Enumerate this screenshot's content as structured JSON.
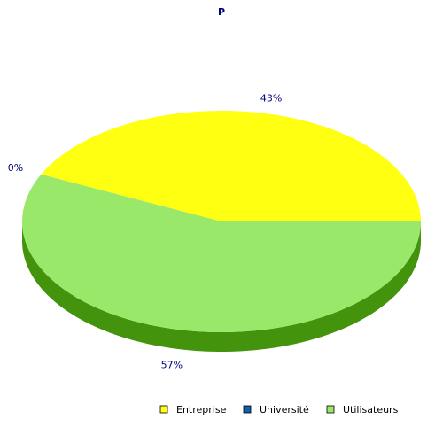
{
  "chart_data": {
    "type": "pie",
    "title": "P",
    "series": [
      {
        "name": "Entreprise",
        "value": 43,
        "label": "43%",
        "color": "#ffff11",
        "side_color": "#cccc00"
      },
      {
        "name": "Université",
        "value": 0,
        "label": "0%",
        "color": "#0f5fa9",
        "side_color": "#0a4478"
      },
      {
        "name": "Utilisateurs",
        "value": 57,
        "label": "57%",
        "color": "#9ae86a",
        "side_color": "#44930c"
      }
    ],
    "legend_position": "bottom-right",
    "label_color": "#000080",
    "three_d": true
  }
}
